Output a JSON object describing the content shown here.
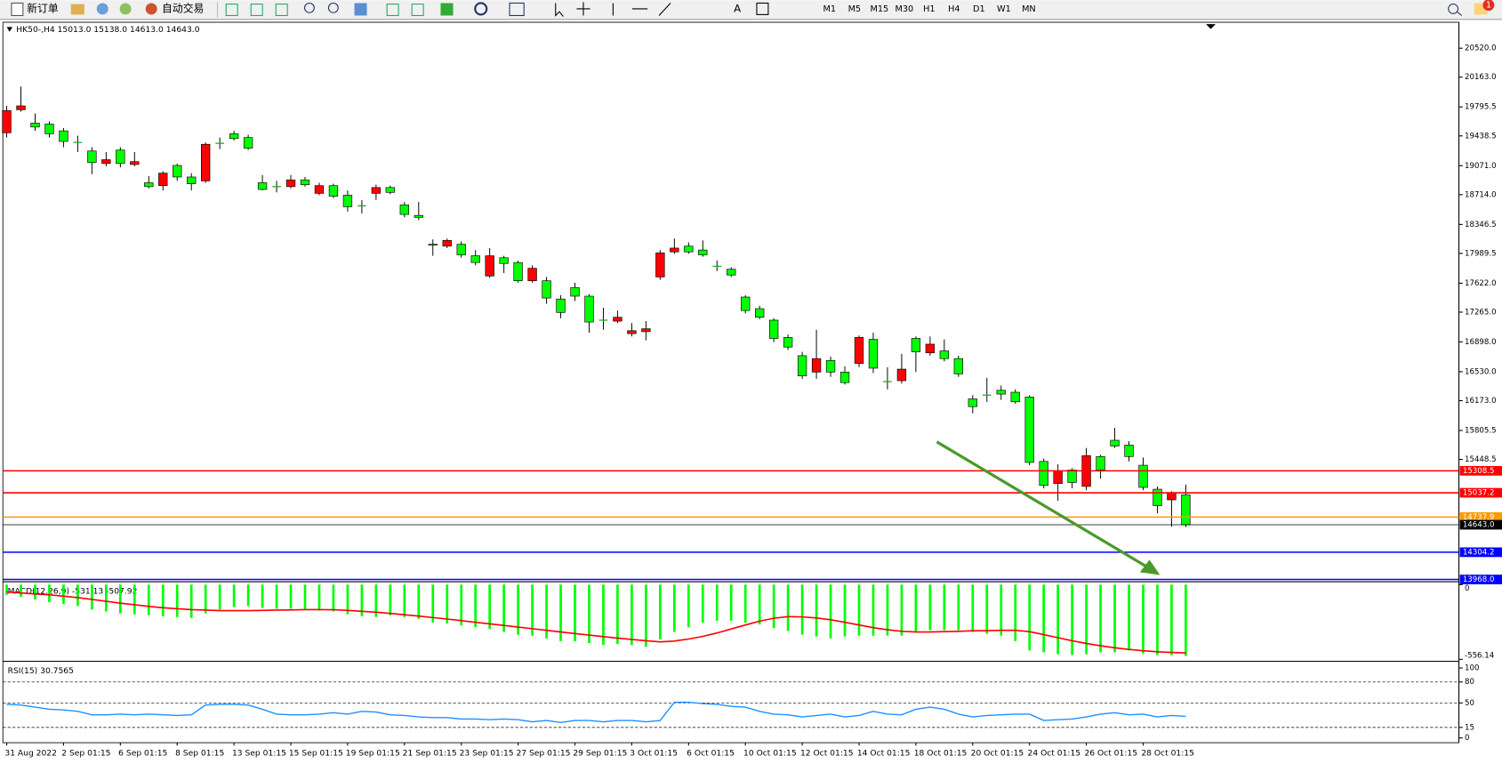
{
  "toolbar": {
    "new_order": "新订单",
    "auto_trading": "自动交易",
    "timeframes": [
      "M1",
      "M5",
      "M15",
      "M30",
      "H1",
      "H4",
      "D1",
      "W1",
      "MN"
    ],
    "badge": "1"
  },
  "chart_data": [
    {
      "type": "candlestick",
      "title": "HK50-,H4 15013.0 15138.0 14613.0 14643.0",
      "categories": [
        "31 Aug 2022",
        null,
        null,
        null,
        "2 Sep 01:15",
        null,
        null,
        null,
        "6 Sep 01:15",
        null,
        null,
        null,
        "8 Sep 01:15",
        null,
        null,
        null,
        "13 Sep 01:15",
        null,
        null,
        null,
        "15 Sep 01:15",
        null,
        null,
        null,
        "19 Sep 01:15",
        null,
        null,
        null,
        "21 Sep 01:15",
        null,
        null,
        null,
        "23 Sep 01:15",
        null,
        null,
        null,
        "27 Sep 01:15",
        null,
        null,
        null,
        "29 Sep 01:15",
        null,
        null,
        null,
        "3 Oct 01:15",
        null,
        null,
        null,
        "6 Oct 01:15",
        null,
        null,
        null,
        "10 Oct 01:15",
        null,
        null,
        null,
        "12 Oct 01:15",
        null,
        null,
        null,
        "14 Oct 01:15",
        null,
        null,
        null,
        "18 Oct 01:15",
        null,
        null,
        null,
        "20 Oct 01:15",
        null,
        null,
        null,
        "24 Oct 01:15",
        null,
        null,
        null,
        "26 Oct 01:15",
        null,
        null,
        null,
        "28 Oct 01:15",
        null,
        null,
        null
      ],
      "open": [
        19477,
        19761,
        19596,
        19584,
        19501,
        19358,
        19252,
        19098,
        19264,
        19086,
        18861,
        18825,
        19074,
        18932,
        18884,
        19347,
        19465,
        19418,
        18861,
        18813,
        18813,
        18896,
        18730,
        18825,
        18707,
        18576,
        18730,
        18802,
        18588,
        18458,
        18102,
        18079,
        18102,
        17960,
        17711,
        17936,
        17877,
        17652,
        17652,
        17427,
        17569,
        17462,
        17166,
        17154,
        17000,
        17024,
        17699,
        18008,
        18079,
        18031,
        17830,
        17794,
        17451,
        17308,
        17166,
        16953,
        16728,
        16526,
        16669,
        16526,
        16633,
        16929,
        16408,
        16420,
        16941,
        16763,
        16787,
        16692,
        16195,
        16242,
        16301,
        16277,
        16218,
        15424,
        15152,
        15318,
        15116,
        15484,
        15685,
        15626,
        15377,
        15081,
        14950,
        15013
      ],
      "high": [
        19809,
        20046,
        19714,
        19619,
        19536,
        19441,
        19299,
        19240,
        19299,
        19240,
        18944,
        19003,
        19098,
        18979,
        19358,
        19418,
        19501,
        19453,
        18956,
        18884,
        18956,
        18932,
        18861,
        18849,
        18766,
        18648,
        18837,
        18825,
        18624,
        18624,
        18162,
        18173,
        18138,
        18031,
        18055,
        17960,
        17901,
        17842,
        17699,
        17474,
        17628,
        17486,
        17320,
        17285,
        17131,
        17154,
        18031,
        18173,
        18126,
        18150,
        17901,
        17818,
        17474,
        17344,
        17190,
        16989,
        16775,
        17048,
        16716,
        16597,
        16977,
        17012,
        16586,
        16751,
        16965,
        16965,
        16929,
        16728,
        16242,
        16455,
        16360,
        16313,
        16242,
        15460,
        15389,
        15341,
        15590,
        15507,
        15839,
        15673,
        15472,
        15116,
        15057,
        15138
      ],
      "low": [
        19418,
        19738,
        19501,
        19418,
        19299,
        19240,
        18967,
        19062,
        19050,
        19062,
        18790,
        18766,
        18884,
        18766,
        18861,
        19276,
        19382,
        19264,
        18766,
        18742,
        18790,
        18813,
        18707,
        18671,
        18505,
        18482,
        18648,
        18719,
        18434,
        18399,
        17960,
        18055,
        17936,
        17842,
        17688,
        17747,
        17628,
        17628,
        17368,
        17190,
        17403,
        17012,
        17048,
        17131,
        16965,
        16917,
        17664,
        17984,
        17984,
        17948,
        17771,
        17699,
        17249,
        17178,
        16894,
        16799,
        16443,
        16443,
        16467,
        16372,
        16586,
        16514,
        16313,
        16384,
        16526,
        16728,
        16657,
        16467,
        16017,
        16159,
        16183,
        16135,
        15377,
        15092,
        14938,
        15092,
        15069,
        15211,
        15590,
        15424,
        15069,
        14784,
        14618,
        14613
      ],
      "close": [
        19750,
        19809,
        19548,
        19465,
        19370,
        19358,
        19110,
        19145,
        19098,
        19121,
        18813,
        18979,
        18932,
        18849,
        19335,
        19347,
        19406,
        19287,
        18778,
        18813,
        18896,
        18837,
        18825,
        18695,
        18565,
        18576,
        18802,
        18742,
        18470,
        18434,
        18091,
        18150,
        17972,
        17877,
        17960,
        17865,
        17652,
        17806,
        17439,
        17261,
        17462,
        17143,
        17166,
        17202,
        17036,
        17060,
        17996,
        18055,
        18008,
        17972,
        17830,
        17723,
        17285,
        17202,
        16941,
        16834,
        16479,
        16692,
        16526,
        16396,
        16953,
        16574,
        16408,
        16562,
        16775,
        16870,
        16692,
        16503,
        16100,
        16242,
        16254,
        16159,
        15412,
        15128,
        15306,
        15164,
        15495,
        15318,
        15614,
        15484,
        15104,
        14879,
        15033,
        14643
      ],
      "up_color": "#ff0000",
      "down_color": "#00ff00",
      "ylim": [
        13940,
        20840
      ],
      "yticks": [
        {
          "value": 20520,
          "label": "20520.0"
        },
        {
          "value": 20163,
          "label": "20163.0"
        },
        19795.5,
        19438.5,
        {
          "value": 19071,
          "label": "19071.0"
        },
        {
          "value": 18714,
          "label": "18714.0"
        },
        18346.5,
        17989.5,
        {
          "value": 17622,
          "label": "17622.0"
        },
        {
          "value": 17265,
          "label": "17265.0"
        },
        {
          "value": 16898,
          "label": "16898.0"
        },
        {
          "value": 16530,
          "label": "16530.0"
        },
        {
          "value": 16173,
          "label": "16173.0"
        },
        15805.5,
        15448.5
      ],
      "hlines": [
        {
          "value": 15308.5,
          "label": "15308.5",
          "color": "#ff0000"
        },
        {
          "value": 15037.2,
          "label": "15037.2",
          "color": "#ff0000"
        },
        {
          "value": 14737.9,
          "label": "14737.9",
          "color": "#ff9900"
        },
        {
          "value": 14643,
          "label": "14643.0",
          "color": "#000000"
        },
        {
          "value": 14304.2,
          "label": "14304.2",
          "color": "#0000ff"
        },
        {
          "value": 13968,
          "label": "13968.0",
          "color": "#0000ff"
        }
      ]
    },
    {
      "type": "macd",
      "title": "MACD(12,26,9) -531.13 -507.92",
      "histogram": [
        -76,
        -90,
        -110,
        -131,
        -145,
        -159,
        -186,
        -200,
        -214,
        -221,
        -228,
        -235,
        -241,
        -248,
        -214,
        -186,
        -166,
        -159,
        -173,
        -179,
        -179,
        -186,
        -193,
        -200,
        -221,
        -235,
        -241,
        -228,
        -241,
        -255,
        -283,
        -290,
        -304,
        -317,
        -331,
        -352,
        -373,
        -380,
        -400,
        -421,
        -421,
        -435,
        -449,
        -442,
        -449,
        -462,
        -407,
        -352,
        -317,
        -283,
        -269,
        -269,
        -283,
        -297,
        -324,
        -345,
        -373,
        -386,
        -400,
        -386,
        -380,
        -380,
        -380,
        -380,
        -352,
        -338,
        -338,
        -338,
        -352,
        -366,
        -380,
        -421,
        -490,
        -504,
        -518,
        -524,
        -518,
        -504,
        -504,
        -490,
        -511,
        -524,
        -524,
        -531.13
      ],
      "signal": [
        -55,
        -62,
        -69,
        -76,
        -86,
        -97,
        -110,
        -124,
        -138,
        -150,
        -162,
        -172,
        -180,
        -186,
        -190,
        -193,
        -193,
        -193,
        -192,
        -190,
        -188,
        -186,
        -186,
        -187,
        -192,
        -198,
        -205,
        -214,
        -224,
        -234,
        -245,
        -256,
        -268,
        -280,
        -292,
        -304,
        -316,
        -328,
        -340,
        -352,
        -364,
        -376,
        -387,
        -398,
        -408,
        -418,
        -426,
        -420,
        -405,
        -385,
        -360,
        -330,
        -300,
        -272,
        -250,
        -238,
        -240,
        -248,
        -262,
        -280,
        -300,
        -320,
        -336,
        -347,
        -352,
        -352,
        -350,
        -347,
        -344,
        -342,
        -340,
        -340,
        -350,
        -372,
        -395,
        -418,
        -438,
        -455,
        -470,
        -482,
        -492,
        -500,
        -505,
        -507.92
      ],
      "histogram_color": "#00ff00",
      "signal_color": "#ff0000",
      "ylim": [
        -556.14,
        0
      ],
      "yticks": [
        0,
        -556.14
      ]
    },
    {
      "type": "line",
      "title": "RSI(15) 30.7565",
      "values": [
        48,
        47,
        44,
        41,
        40,
        38,
        33,
        33,
        34,
        33,
        34,
        33,
        32,
        33,
        47,
        48,
        48,
        47,
        41,
        34,
        33,
        33,
        34,
        36,
        34,
        38,
        37,
        33,
        32,
        30,
        29,
        29,
        27,
        27,
        26,
        27,
        26,
        23,
        25,
        22,
        25,
        25,
        23,
        25,
        25,
        23,
        25,
        51,
        51,
        49,
        48,
        45,
        44,
        38,
        34,
        33,
        30,
        32,
        34,
        30,
        32,
        38,
        34,
        33,
        41,
        44,
        41,
        34,
        30,
        32,
        33,
        34,
        34,
        25,
        26,
        27,
        30,
        34,
        36,
        33,
        34,
        30,
        32,
        30.7565
      ],
      "color": "#1e90ff",
      "ylim": [
        0,
        100
      ],
      "yticks": [
        100,
        80,
        50,
        15,
        0
      ],
      "levels": [
        80,
        50,
        15
      ]
    }
  ]
}
